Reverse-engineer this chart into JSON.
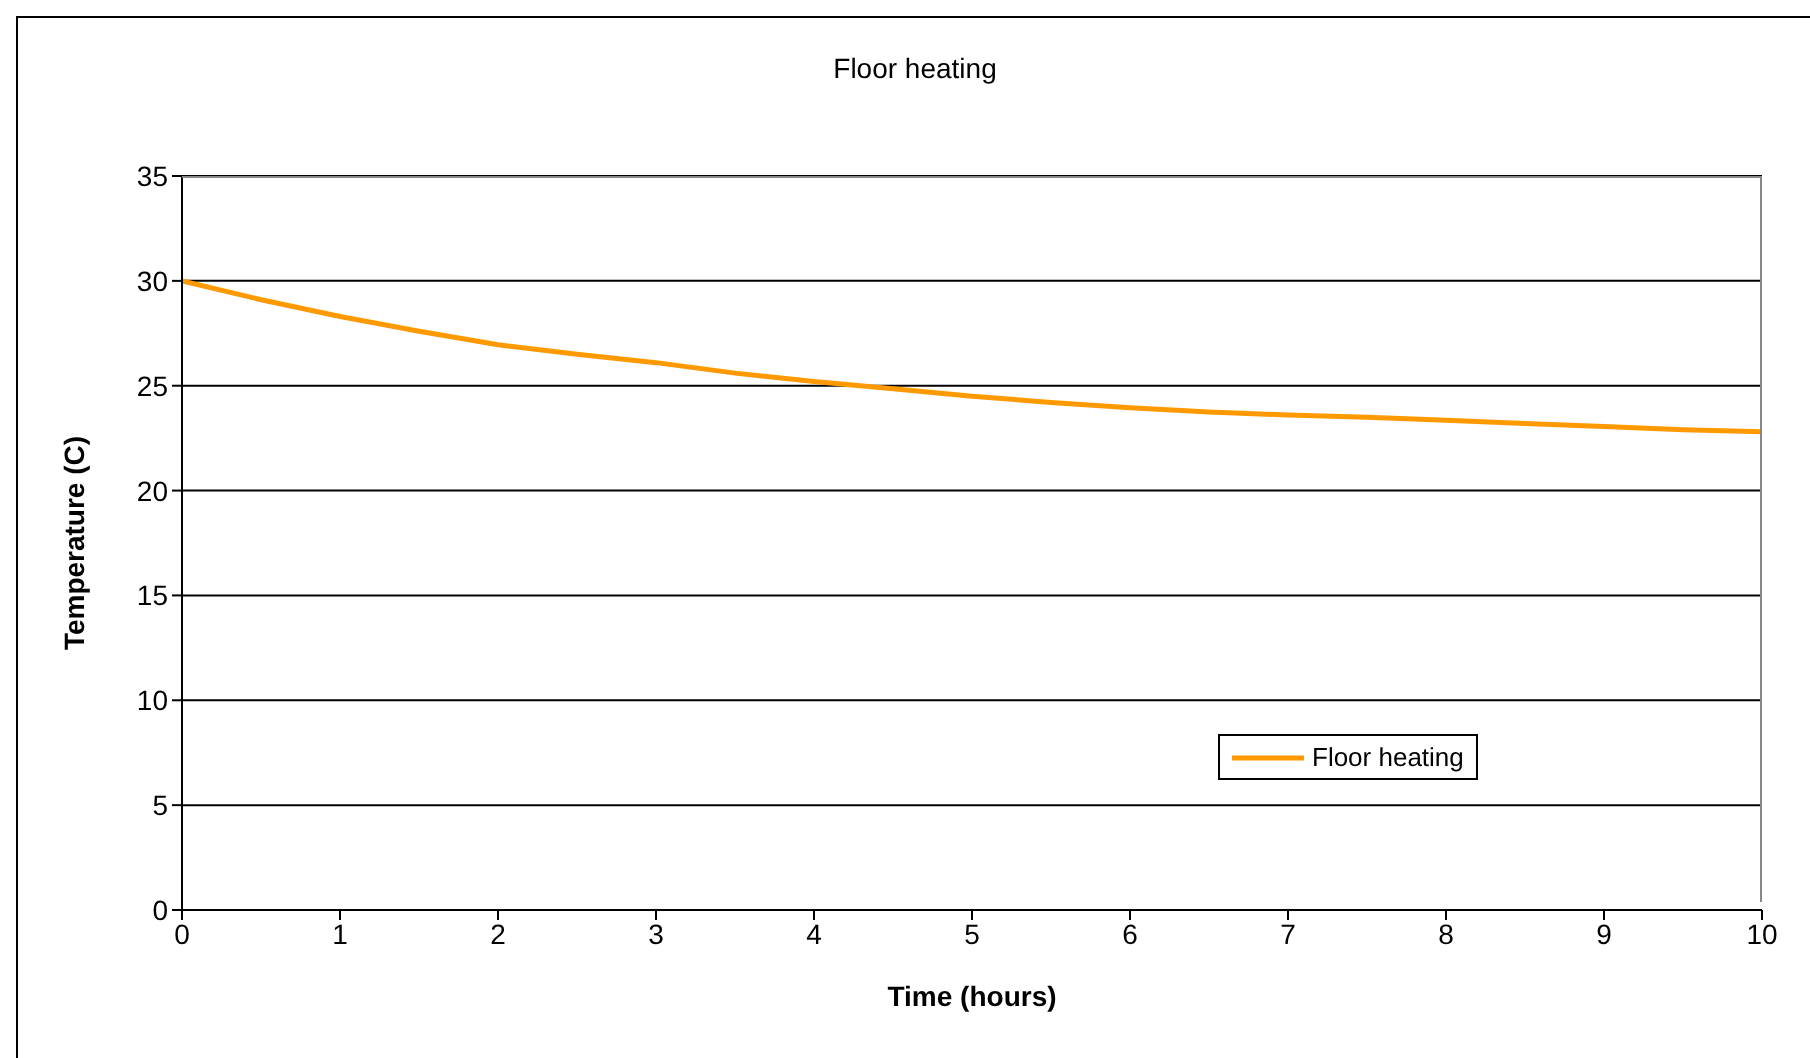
{
  "chart_data": {
    "type": "line",
    "title": "Floor heating",
    "xlabel": "Time (hours)",
    "ylabel": "Temperature (C)",
    "x": [
      0,
      0.5,
      1,
      1.5,
      2,
      2.5,
      3,
      3.5,
      4,
      4.5,
      5,
      5.5,
      6,
      6.5,
      7,
      7.5,
      8,
      8.5,
      9,
      9.5,
      10
    ],
    "series": [
      {
        "name": "Floor heating",
        "color": "#ff9900",
        "values": [
          30,
          29.1,
          28.3,
          27.6,
          26.95,
          26.5,
          26.1,
          25.6,
          25.2,
          24.85,
          24.5,
          24.2,
          23.95,
          23.75,
          23.6,
          23.5,
          23.35,
          23.2,
          23.05,
          22.9,
          22.8
        ]
      }
    ],
    "xlim": [
      0,
      10
    ],
    "xticks": [
      0,
      1,
      2,
      3,
      4,
      5,
      6,
      7,
      8,
      9,
      10
    ],
    "ylim": [
      0,
      35
    ],
    "yticks": [
      0,
      5,
      10,
      15,
      20,
      25,
      30,
      35
    ],
    "grid": "y",
    "legend": "bottom right",
    "marker": "none",
    "line_style": "solid"
  }
}
